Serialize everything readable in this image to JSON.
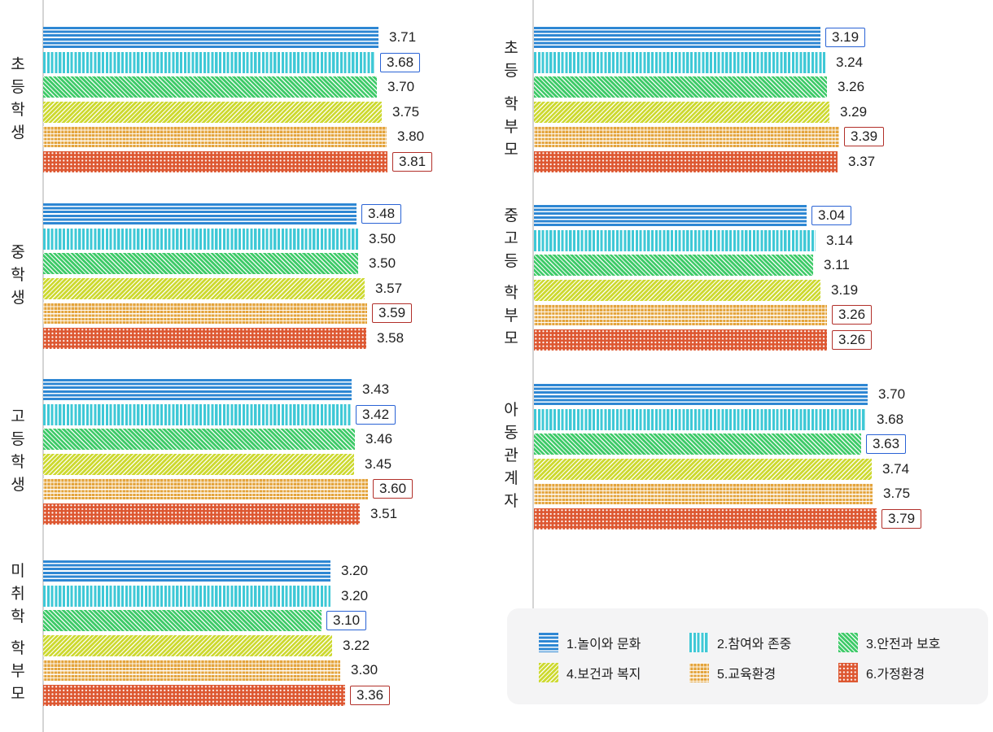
{
  "chart_data": {
    "type": "bar",
    "orientation": "horizontal",
    "value_axis": {
      "min": 0,
      "implied_max": 4.0,
      "gridlines": false,
      "tick_labels_shown": false
    },
    "annotation_boxes": {
      "blue_box_color": "#2a63d5",
      "red_box_color": "#b2302a"
    },
    "legend": {
      "position": "bottom-right",
      "background": "#f4f4f5",
      "items": [
        {
          "label": "1.놀이와 문화",
          "color": "#2e87d3",
          "pattern": "horizontal-stripes"
        },
        {
          "label": "2.참여와 존중",
          "color": "#3fc8d6",
          "pattern": "vertical-stripes"
        },
        {
          "label": "3.안전과 보호",
          "color": "#3eca68",
          "pattern": "diagonal-up-hatch"
        },
        {
          "label": "4.보건과 복지",
          "color": "#cdd930",
          "pattern": "diagonal-down-hatch"
        },
        {
          "label": "5.교육환경",
          "color": "#e4a43c",
          "pattern": "weave"
        },
        {
          "label": "6.가정환경",
          "color": "#dd5731",
          "pattern": "white-dots"
        }
      ]
    },
    "groups": [
      {
        "label": "초등학생",
        "column": "left",
        "bars": [
          {
            "series": "1.놀이와 문화",
            "value": 3.71,
            "label": "3.71",
            "box": null
          },
          {
            "series": "2.참여와 존중",
            "value": 3.68,
            "label": "3.68",
            "box": "blue"
          },
          {
            "series": "3.안전과 보호",
            "value": 3.7,
            "label": "3.70",
            "box": null
          },
          {
            "series": "4.보건과 복지",
            "value": 3.75,
            "label": "3.75",
            "box": null
          },
          {
            "series": "5.교육환경",
            "value": 3.8,
            "label": "3.80",
            "box": null
          },
          {
            "series": "6.가정환경",
            "value": 3.81,
            "label": "3.81",
            "box": "red"
          }
        ]
      },
      {
        "label": "중학생",
        "column": "left",
        "bars": [
          {
            "series": "1.놀이와 문화",
            "value": 3.48,
            "label": "3.48",
            "box": "blue"
          },
          {
            "series": "2.참여와 존중",
            "value": 3.5,
            "label": "3.50",
            "box": null
          },
          {
            "series": "3.안전과 보호",
            "value": 3.5,
            "label": "3.50",
            "box": null
          },
          {
            "series": "4.보건과 복지",
            "value": 3.57,
            "label": "3.57",
            "box": null
          },
          {
            "series": "5.교육환경",
            "value": 3.59,
            "label": "3.59",
            "box": "red"
          },
          {
            "series": "6.가정환경",
            "value": 3.58,
            "label": "3.58",
            "box": null
          }
        ]
      },
      {
        "label": "고등학생",
        "column": "left",
        "bars": [
          {
            "series": "1.놀이와 문화",
            "value": 3.43,
            "label": "3.43",
            "box": null
          },
          {
            "series": "2.참여와 존중",
            "value": 3.42,
            "label": "3.42",
            "box": "blue"
          },
          {
            "series": "3.안전과 보호",
            "value": 3.46,
            "label": "3.46",
            "box": null
          },
          {
            "series": "4.보건과 복지",
            "value": 3.45,
            "label": "3.45",
            "box": null
          },
          {
            "series": "5.교육환경",
            "value": 3.6,
            "label": "3.60",
            "box": "red"
          },
          {
            "series": "6.가정환경",
            "value": 3.51,
            "label": "3.51",
            "box": null
          }
        ]
      },
      {
        "label": "미취학 학부모",
        "column": "left",
        "bars": [
          {
            "series": "1.놀이와 문화",
            "value": 3.2,
            "label": "3.20",
            "box": null
          },
          {
            "series": "2.참여와 존중",
            "value": 3.2,
            "label": "3.20",
            "box": null
          },
          {
            "series": "3.안전과 보호",
            "value": 3.1,
            "label": "3.10",
            "box": "blue"
          },
          {
            "series": "4.보건과 복지",
            "value": 3.22,
            "label": "3.22",
            "box": null
          },
          {
            "series": "5.교육환경",
            "value": 3.3,
            "label": "3.30",
            "box": null
          },
          {
            "series": "6.가정환경",
            "value": 3.36,
            "label": "3.36",
            "box": "red"
          }
        ]
      },
      {
        "label": "초등 학부모",
        "column": "right",
        "bars": [
          {
            "series": "1.놀이와 문화",
            "value": 3.19,
            "label": "3.19",
            "box": "blue"
          },
          {
            "series": "2.참여와 존중",
            "value": 3.24,
            "label": "3.24",
            "box": null
          },
          {
            "series": "3.안전과 보호",
            "value": 3.26,
            "label": "3.26",
            "box": null
          },
          {
            "series": "4.보건과 복지",
            "value": 3.29,
            "label": "3.29",
            "box": null
          },
          {
            "series": "5.교육환경",
            "value": 3.39,
            "label": "3.39",
            "box": "red"
          },
          {
            "series": "6.가정환경",
            "value": 3.37,
            "label": "3.37",
            "box": null
          }
        ]
      },
      {
        "label": "중고등 학부모",
        "column": "right",
        "bars": [
          {
            "series": "1.놀이와 문화",
            "value": 3.04,
            "label": "3.04",
            "box": "blue"
          },
          {
            "series": "2.참여와 존중",
            "value": 3.14,
            "label": "3.14",
            "box": null
          },
          {
            "series": "3.안전과 보호",
            "value": 3.11,
            "label": "3.11",
            "box": null
          },
          {
            "series": "4.보건과 복지",
            "value": 3.19,
            "label": "3.19",
            "box": null
          },
          {
            "series": "5.교육환경",
            "value": 3.26,
            "label": "3.26",
            "box": "red"
          },
          {
            "series": "6.가정환경",
            "value": 3.26,
            "label": "3.26",
            "box": "red"
          }
        ]
      },
      {
        "label": "아동관계자",
        "column": "right",
        "bars": [
          {
            "series": "1.놀이와 문화",
            "value": 3.7,
            "label": "3.70",
            "box": null
          },
          {
            "series": "2.참여와 존중",
            "value": 3.68,
            "label": "3.68",
            "box": null
          },
          {
            "series": "3.안전과 보호",
            "value": 3.63,
            "label": "3.63",
            "box": "blue"
          },
          {
            "series": "4.보건과 복지",
            "value": 3.74,
            "label": "3.74",
            "box": null
          },
          {
            "series": "5.교육환경",
            "value": 3.75,
            "label": "3.75",
            "box": null
          },
          {
            "series": "6.가정환경",
            "value": 3.79,
            "label": "3.79",
            "box": "red"
          }
        ]
      }
    ]
  },
  "colors": {
    "axis_line": "#d4d4d4",
    "text": "#212121",
    "legend_background": "#f4f4f5"
  }
}
